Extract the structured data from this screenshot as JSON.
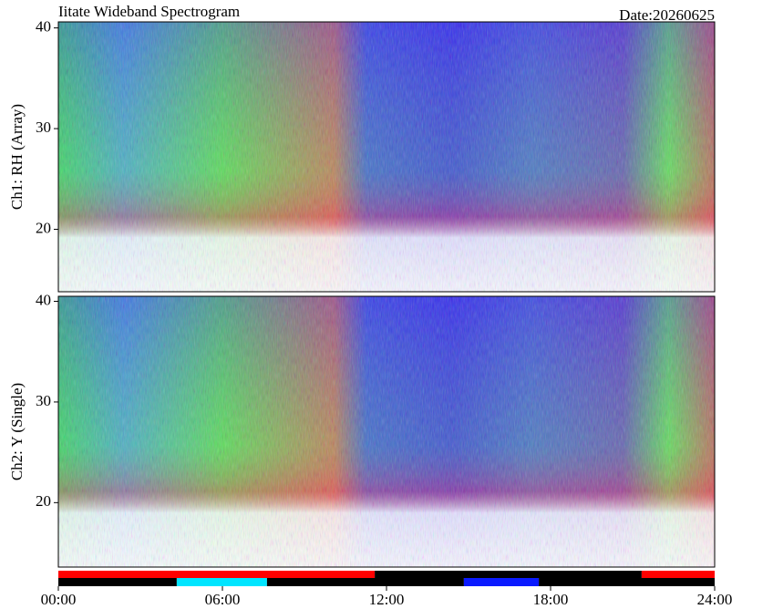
{
  "title": "Iitate Wideband Spectrogram",
  "date": "Date:20260625",
  "chart_data": [
    {
      "type": "spectrogram",
      "ylabel": "Ch1: RH (Array)",
      "ylim": [
        13.8,
        40.6
      ],
      "yticks": [
        20,
        30,
        40
      ]
    },
    {
      "type": "spectrogram",
      "ylabel": "Ch2: Y (Single)",
      "ylim": [
        13.6,
        40.5
      ],
      "yticks": [
        20,
        30,
        40
      ],
      "xlim": [
        0,
        24
      ],
      "xticks": [
        {
          "value": 0,
          "label": "00:00"
        },
        {
          "value": 6,
          "label": "06:00"
        },
        {
          "value": 12,
          "label": "12:00"
        },
        {
          "value": 18,
          "label": "18:00"
        },
        {
          "value": 24,
          "label": "24:00"
        }
      ]
    }
  ],
  "status_bars": [
    {
      "segments": [
        {
          "start": 0,
          "end": 11.57,
          "color": "#ff0000"
        },
        {
          "start": 11.57,
          "end": 21.33,
          "color": "#000000"
        },
        {
          "start": 21.33,
          "end": 24,
          "color": "#ff0000"
        }
      ]
    },
    {
      "segments": [
        {
          "start": 0,
          "end": 4.33,
          "color": "#000000"
        },
        {
          "start": 4.33,
          "end": 7.63,
          "color": "#00e5ff"
        },
        {
          "start": 7.63,
          "end": 14.83,
          "color": "#000000"
        },
        {
          "start": 14.83,
          "end": 17.57,
          "color": "#0a1aff"
        },
        {
          "start": 17.57,
          "end": 24,
          "color": "#000000"
        }
      ]
    }
  ]
}
